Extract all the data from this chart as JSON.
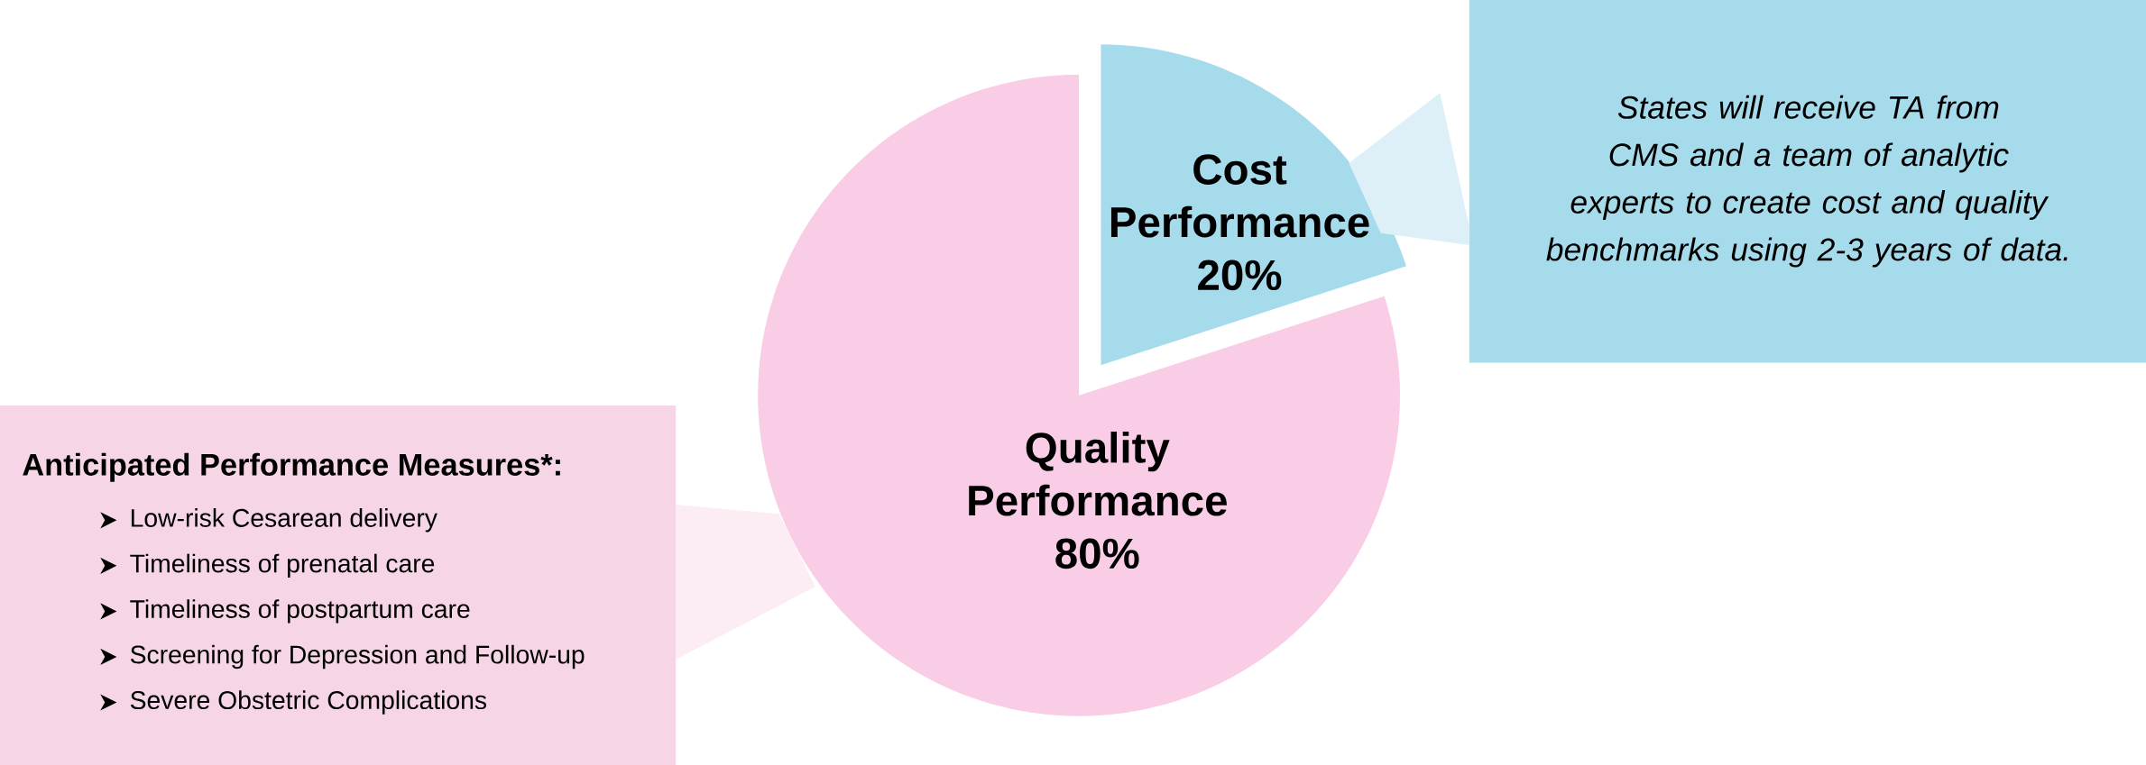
{
  "chart_data": {
    "type": "pie",
    "categories": [
      "Cost Performance",
      "Quality Performance"
    ],
    "values": [
      20,
      80
    ],
    "value_labels": [
      "20%",
      "80%"
    ],
    "colors": [
      "#a6dbeb",
      "#f9cde6"
    ],
    "annotations": [
      "States will receive TA from CMS and a team of analytic experts to create cost and quality benchmarks using 2-3 years of data.",
      "Anticipated Performance Measures*:",
      "Low-risk Cesarean delivery",
      "Timeliness of prenatal care",
      "Timeliness of postpartum care",
      "Screening for Depression and Follow-up",
      "Severe Obstetric Complications"
    ]
  }
}
